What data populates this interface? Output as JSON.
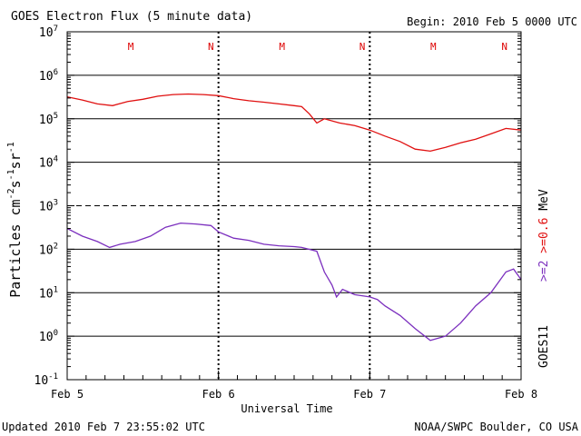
{
  "chart_data": {
    "type": "line",
    "title": "GOES Electron Flux (5 minute data)",
    "begin_label": "Begin: 2010 Feb 5 0000 UTC",
    "xlabel": "Universal Time",
    "ylabel": "Particles cm⁻²s⁻¹sr⁻¹",
    "ylabel_parts": [
      "Particles cm",
      "-2",
      "s",
      "-1",
      "sr",
      "-1"
    ],
    "y_scale": "log",
    "ylim": [
      0.1,
      10000000
    ],
    "y_ticks": [
      {
        "base": "10",
        "exp": "-1"
      },
      {
        "base": "10",
        "exp": "0"
      },
      {
        "base": "10",
        "exp": "1"
      },
      {
        "base": "10",
        "exp": "2"
      },
      {
        "base": "10",
        "exp": "3"
      },
      {
        "base": "10",
        "exp": "4"
      },
      {
        "base": "10",
        "exp": "5"
      },
      {
        "base": "10",
        "exp": "6"
      },
      {
        "base": "10",
        "exp": "7"
      }
    ],
    "xlim": [
      0,
      3
    ],
    "x_ticks": [
      {
        "x": 0,
        "label": "Feb 5"
      },
      {
        "x": 1,
        "label": "Feb 6"
      },
      {
        "x": 2,
        "label": "Feb 7"
      },
      {
        "x": 3,
        "label": "Feb 8"
      }
    ],
    "dashed_days": [
      1,
      2
    ],
    "dashed_level": 1000,
    "mn_markers": [
      {
        "x": 0.48,
        "label": "M"
      },
      {
        "x": 1.01,
        "label": "N"
      },
      {
        "x": 1.48,
        "label": "M"
      },
      {
        "x": 2.01,
        "label": "N"
      },
      {
        "x": 2.48,
        "label": "M"
      },
      {
        "x": 3.01,
        "label": "N"
      }
    ],
    "series": [
      {
        "name": ">=2",
        "color": "#7b2fbe",
        "points": [
          [
            0,
            300
          ],
          [
            0.1,
            200
          ],
          [
            0.2,
            150
          ],
          [
            0.28,
            110
          ],
          [
            0.35,
            130
          ],
          [
            0.45,
            150
          ],
          [
            0.55,
            200
          ],
          [
            0.65,
            320
          ],
          [
            0.75,
            400
          ],
          [
            0.85,
            380
          ],
          [
            0.95,
            350
          ],
          [
            1.0,
            250
          ],
          [
            1.1,
            180
          ],
          [
            1.2,
            160
          ],
          [
            1.3,
            130
          ],
          [
            1.4,
            120
          ],
          [
            1.5,
            115
          ],
          [
            1.55,
            110
          ],
          [
            1.65,
            90
          ],
          [
            1.7,
            30
          ],
          [
            1.75,
            15
          ],
          [
            1.78,
            8
          ],
          [
            1.82,
            12
          ],
          [
            1.9,
            9
          ],
          [
            2.0,
            8
          ],
          [
            2.05,
            7
          ],
          [
            2.1,
            5
          ],
          [
            2.2,
            3
          ],
          [
            2.3,
            1.5
          ],
          [
            2.4,
            0.8
          ],
          [
            2.5,
            1
          ],
          [
            2.6,
            2
          ],
          [
            2.7,
            5
          ],
          [
            2.8,
            10
          ],
          [
            2.9,
            30
          ],
          [
            2.95,
            35
          ],
          [
            3.0,
            20
          ]
        ]
      },
      {
        "name": ">=0.6 MeV",
        "color": "#e01010",
        "points": [
          [
            0,
            320000
          ],
          [
            0.1,
            270000
          ],
          [
            0.2,
            220000
          ],
          [
            0.3,
            200000
          ],
          [
            0.4,
            250000
          ],
          [
            0.5,
            280000
          ],
          [
            0.6,
            330000
          ],
          [
            0.7,
            360000
          ],
          [
            0.8,
            370000
          ],
          [
            0.9,
            360000
          ],
          [
            1.0,
            340000
          ],
          [
            1.1,
            290000
          ],
          [
            1.2,
            260000
          ],
          [
            1.3,
            240000
          ],
          [
            1.4,
            220000
          ],
          [
            1.5,
            200000
          ],
          [
            1.55,
            190000
          ],
          [
            1.6,
            130000
          ],
          [
            1.65,
            80000
          ],
          [
            1.7,
            100000
          ],
          [
            1.8,
            80000
          ],
          [
            1.9,
            70000
          ],
          [
            2.0,
            55000
          ],
          [
            2.1,
            40000
          ],
          [
            2.2,
            30000
          ],
          [
            2.3,
            20000
          ],
          [
            2.4,
            18000
          ],
          [
            2.5,
            22000
          ],
          [
            2.6,
            28000
          ],
          [
            2.7,
            34000
          ],
          [
            2.8,
            45000
          ],
          [
            2.9,
            60000
          ],
          [
            3.0,
            55000
          ]
        ]
      }
    ],
    "right_label": {
      "label_a": ">=2",
      "label_b": ">=0.6",
      "unit": "MeV",
      "satellite": "GOES11"
    },
    "footer_left": "Updated 2010 Feb  7 23:55:02 UTC",
    "footer_right": "NOAA/SWPC Boulder, CO USA",
    "grid": "horizontal decade lines",
    "legend": "right side, vertical"
  }
}
